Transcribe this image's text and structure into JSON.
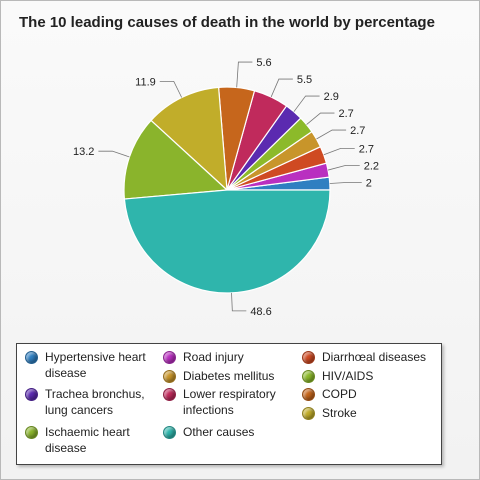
{
  "chart_data": {
    "type": "pie",
    "title": "The 10 leading causes of death in the world by percentage",
    "slices": [
      {
        "name": "Hypertensive heart disease",
        "value": 2,
        "label": "2",
        "color": "#2f7fc1"
      },
      {
        "name": "Road injury",
        "value": 2.2,
        "label": "2.2",
        "color": "#b92fc0"
      },
      {
        "name": "Diarrhœal diseases",
        "value": 2.7,
        "label": "2.7",
        "color": "#cf4a22"
      },
      {
        "name": "Diabetes mellitus",
        "value": 2.7,
        "label": "2.7",
        "color": "#c8952a"
      },
      {
        "name": "HIV/AIDS",
        "value": 2.7,
        "label": "2.7",
        "color": "#8cba2a"
      },
      {
        "name": "Trachea bronchus, lung cancers",
        "value": 2.9,
        "label": "2.9",
        "color": "#5b2ab0"
      },
      {
        "name": "Lower respiratory infections",
        "value": 5.5,
        "label": "5.5",
        "color": "#c02a5c"
      },
      {
        "name": "COPD",
        "value": 5.6,
        "label": "5.6",
        "color": "#c6661c"
      },
      {
        "name": "Stroke",
        "value": 11.9,
        "label": "11.9",
        "color": "#c1ad2a"
      },
      {
        "name": "Ischaemic heart disease",
        "value": 13.2,
        "label": "13.2",
        "color": "#8ab42c"
      },
      {
        "name": "Other causes",
        "value": 48.6,
        "label": "48.6",
        "color": "#2fb5ac"
      }
    ]
  },
  "legend": {
    "items": [
      {
        "label": "Hypertensive heart disease",
        "color": "#2f7fc1"
      },
      {
        "label": "Road injury",
        "color": "#b92fc0"
      },
      {
        "label": "Diarrhœal diseases",
        "color": "#cf4a22"
      },
      {
        "label": "Trachea bronchus, lung cancers",
        "color": "#5b2ab0"
      },
      {
        "label": "Diabetes mellitus",
        "color": "#c8952a"
      },
      {
        "label": "HIV/AIDS",
        "color": "#8cba2a"
      },
      {
        "label": "Lower respiratory infections",
        "color": "#c02a5c"
      },
      {
        "label": "COPD",
        "color": "#c6661c"
      },
      {
        "label": "Ischaemic heart disease",
        "color": "#8ab42c"
      },
      {
        "label": "Other causes",
        "color": "#2fb5ac"
      },
      {
        "label": "Stroke",
        "color": "#c1ad2a"
      }
    ]
  }
}
